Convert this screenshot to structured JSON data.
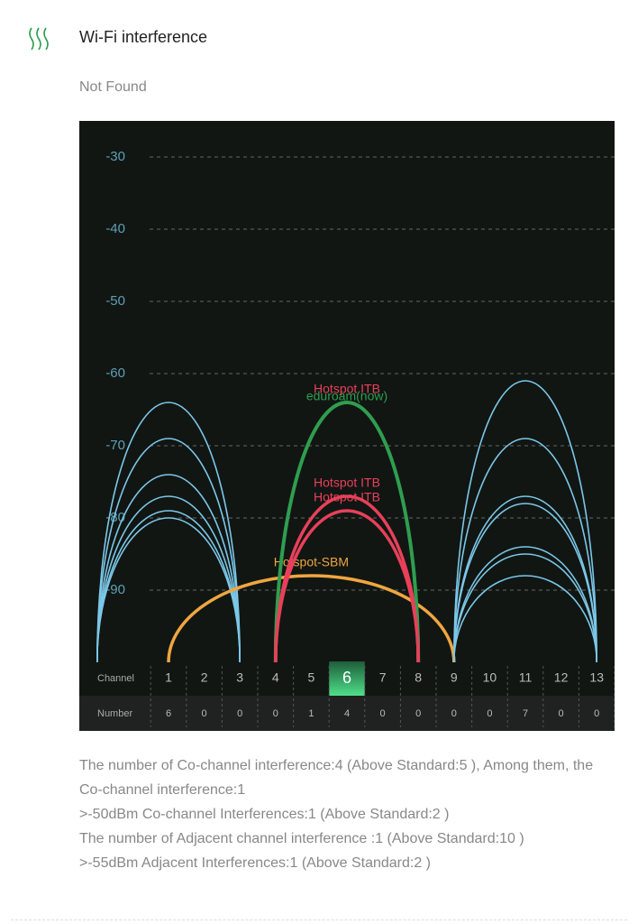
{
  "header": {
    "title": "Wi-Fi interference",
    "status": "Not Found"
  },
  "chart_data": {
    "type": "wifi-channels",
    "ylim": [
      -100,
      -25
    ],
    "yticks": [
      -30,
      -40,
      -50,
      -60,
      -70,
      -80,
      -90
    ],
    "grid": true,
    "xlim": [
      -1.5,
      13.5
    ],
    "row_labels": [
      "Channel",
      "Number"
    ],
    "channels": [
      1,
      2,
      3,
      4,
      5,
      6,
      7,
      8,
      9,
      10,
      11,
      12,
      13
    ],
    "counts": [
      6,
      0,
      0,
      0,
      1,
      4,
      0,
      0,
      0,
      0,
      7,
      0,
      0
    ],
    "selected_channel": 6,
    "series": [
      {
        "channel": 1,
        "span": 2,
        "level": -64,
        "color": "#7cc7e8"
      },
      {
        "channel": 1,
        "span": 2,
        "level": -69,
        "color": "#7cc7e8"
      },
      {
        "channel": 1,
        "span": 2,
        "level": -74,
        "color": "#7cc7e8"
      },
      {
        "channel": 1,
        "span": 2,
        "level": -77,
        "color": "#7cc7e8"
      },
      {
        "channel": 1,
        "span": 2,
        "level": -79,
        "color": "#7cc7e8"
      },
      {
        "channel": 1,
        "span": 2,
        "level": -80,
        "color": "#7cc7e8"
      },
      {
        "name": "Hotspot-SBM",
        "channel": 5,
        "span": 4,
        "level": -88,
        "color": "#f0a640"
      },
      {
        "name": "Hotspot ITB",
        "channel": 6,
        "span": 2,
        "level": -64,
        "color": "#e8405a"
      },
      {
        "name": "eduroam(now)",
        "channel": 6,
        "span": 2,
        "level": -64,
        "color": "#2e9e4f"
      },
      {
        "name": "Hotspot ITB",
        "channel": 6,
        "span": 2,
        "level": -77,
        "color": "#e8405a"
      },
      {
        "name": "Hotspot ITB",
        "channel": 6,
        "span": 2,
        "level": -79,
        "color": "#e8405a"
      },
      {
        "channel": 11,
        "span": 2,
        "level": -61,
        "color": "#7cc7e8"
      },
      {
        "channel": 11,
        "span": 2,
        "level": -69,
        "color": "#7cc7e8"
      },
      {
        "channel": 11,
        "span": 2,
        "level": -77,
        "color": "#7cc7e8"
      },
      {
        "channel": 11,
        "span": 2,
        "level": -78,
        "color": "#7cc7e8"
      },
      {
        "channel": 11,
        "span": 2,
        "level": -84,
        "color": "#7cc7e8"
      },
      {
        "channel": 11,
        "span": 2,
        "level": -85,
        "color": "#7cc7e8"
      },
      {
        "channel": 11,
        "span": 2,
        "level": -88,
        "color": "#7cc7e8"
      }
    ]
  },
  "notes": [
    "The number of Co-channel interference:4 (Above Standard:5 ), Among them, the Co-channel interference:1",
    ">-50dBm Co-channel Interferences:1 (Above Standard:2 )",
    "The number of Adjacent channel interference :1 (Above Standard:10 )",
    ">-55dBm Adjacent Interferences:1 (Above Standard:2 )"
  ]
}
